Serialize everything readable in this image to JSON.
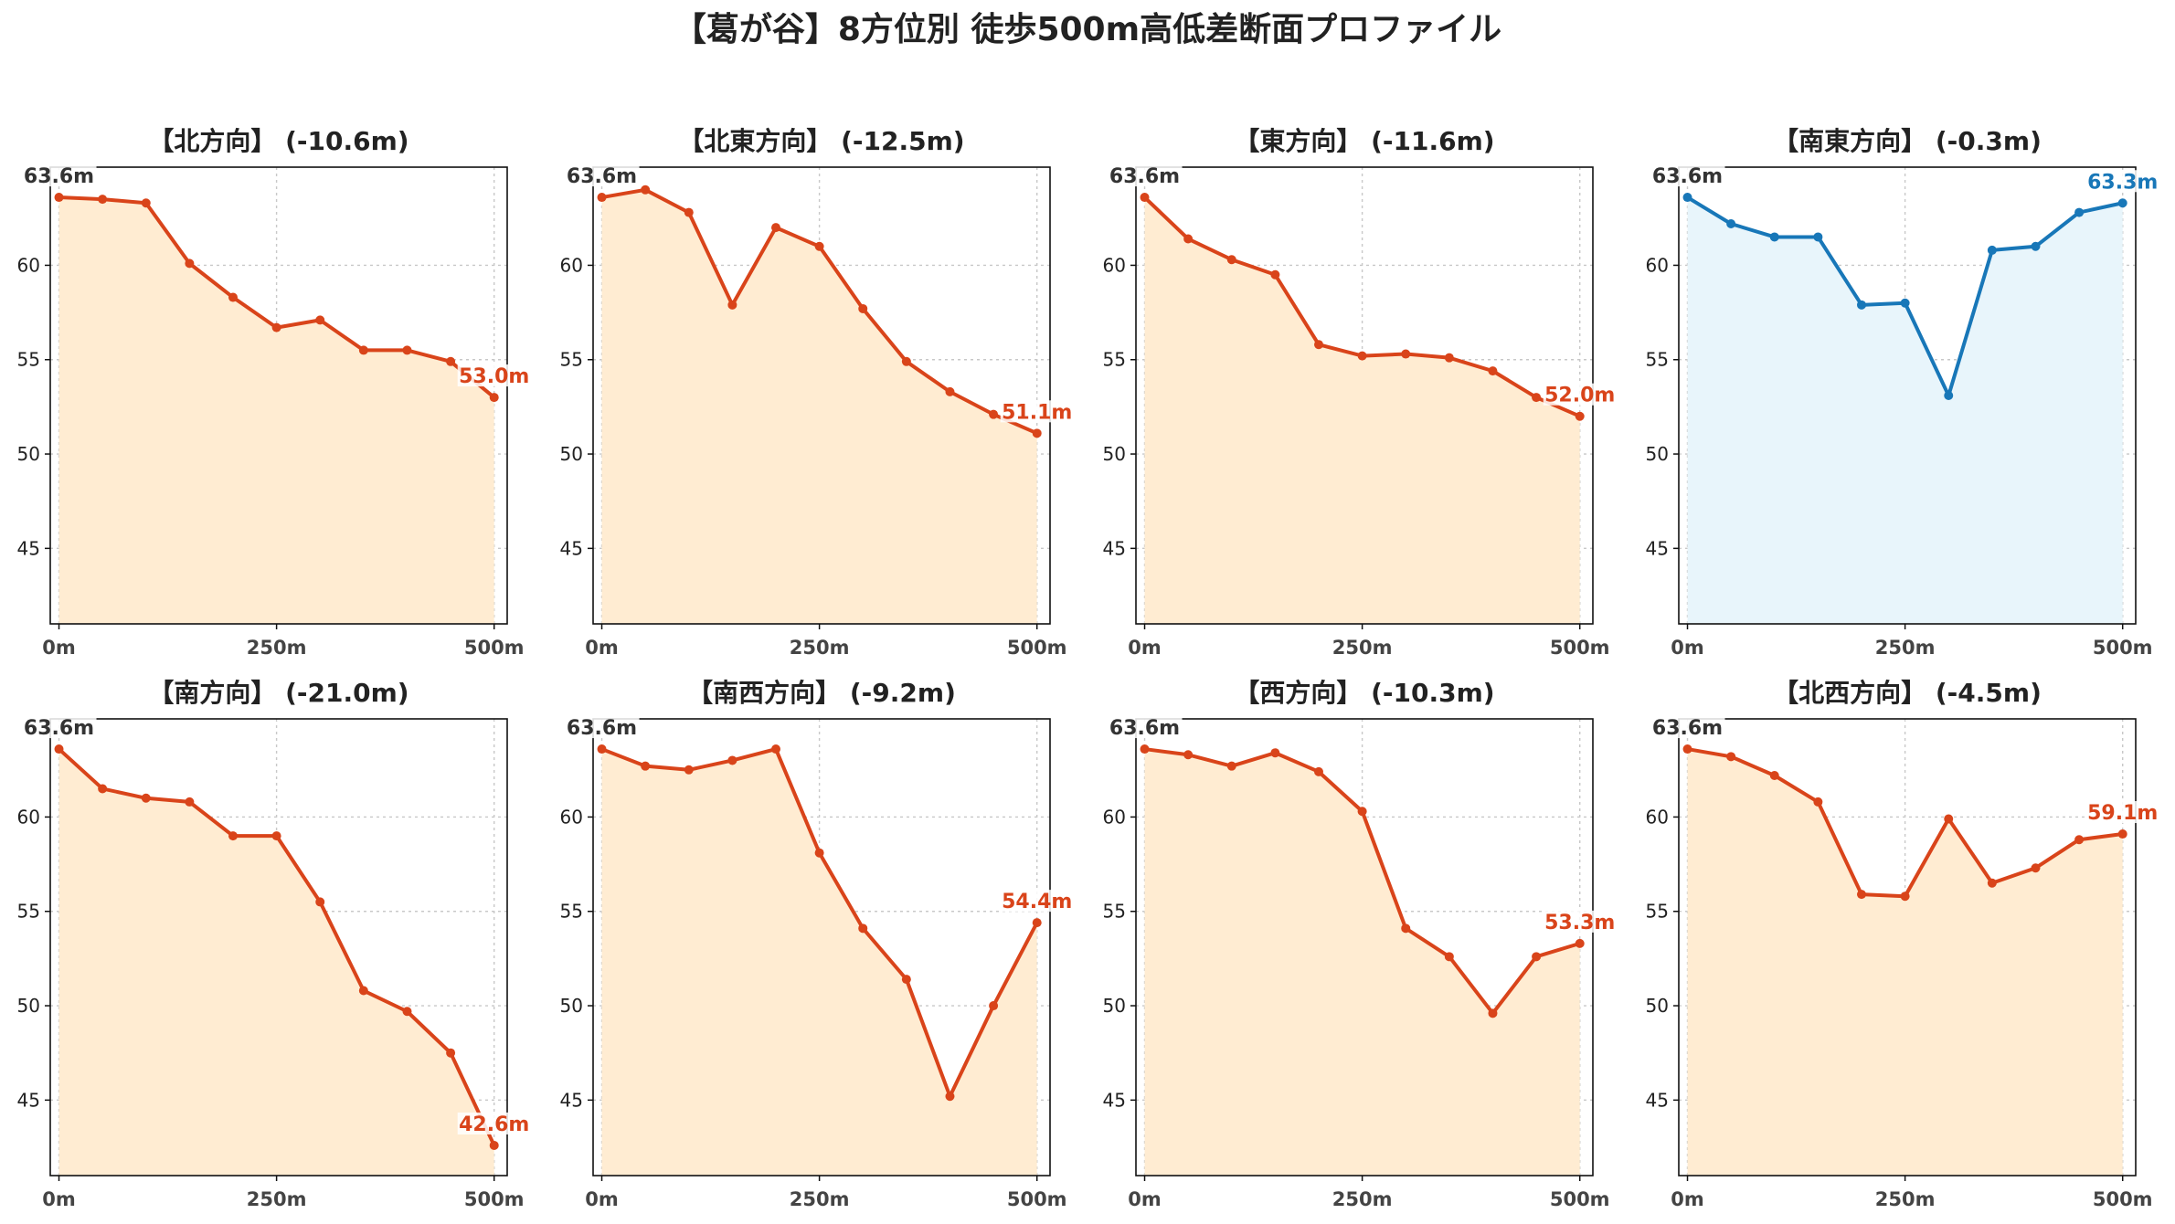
{
  "title": "【葛が谷】8方位別 徒歩500m高低差断面プロファイル",
  "chart_data": [
    {
      "type": "area",
      "title": "【北方向】 (-10.6m)",
      "color": "#d9441a",
      "fill": "#ffecd2",
      "x": [
        0,
        50,
        100,
        150,
        200,
        250,
        300,
        350,
        400,
        450,
        500
      ],
      "values": [
        63.6,
        63.5,
        63.3,
        60.1,
        58.3,
        56.7,
        57.1,
        55.5,
        55.5,
        54.9,
        53.0
      ],
      "start_label": "63.6m",
      "end_label": "53.0m",
      "xticks": [
        "0m",
        "250m",
        "500m"
      ],
      "yticks": [
        "45",
        "50",
        "55",
        "60"
      ],
      "ylim": [
        41,
        65.2
      ],
      "xlim": [
        -10,
        515
      ],
      "grid": true
    },
    {
      "type": "area",
      "title": "【北東方向】 (-12.5m)",
      "color": "#d9441a",
      "fill": "#ffecd2",
      "x": [
        0,
        50,
        100,
        150,
        200,
        250,
        300,
        350,
        400,
        450,
        500
      ],
      "values": [
        63.6,
        64.0,
        62.8,
        57.9,
        62.0,
        61.0,
        57.7,
        54.9,
        53.3,
        52.1,
        51.1
      ],
      "start_label": "63.6m",
      "end_label": "51.1m",
      "xticks": [
        "0m",
        "250m",
        "500m"
      ],
      "yticks": [
        "45",
        "50",
        "55",
        "60"
      ],
      "ylim": [
        41,
        65.2
      ],
      "xlim": [
        -10,
        515
      ],
      "grid": true
    },
    {
      "type": "area",
      "title": "【東方向】 (-11.6m)",
      "color": "#d9441a",
      "fill": "#ffecd2",
      "x": [
        0,
        50,
        100,
        150,
        200,
        250,
        300,
        350,
        400,
        450,
        500
      ],
      "values": [
        63.6,
        61.4,
        60.3,
        59.5,
        55.8,
        55.2,
        55.3,
        55.1,
        54.4,
        53.0,
        52.0
      ],
      "start_label": "63.6m",
      "end_label": "52.0m",
      "xticks": [
        "0m",
        "250m",
        "500m"
      ],
      "yticks": [
        "45",
        "50",
        "55",
        "60"
      ],
      "ylim": [
        41,
        65.2
      ],
      "xlim": [
        -10,
        515
      ],
      "grid": true
    },
    {
      "type": "area",
      "title": "【南東方向】 (-0.3m)",
      "color": "#1877b8",
      "fill": "#e8f5fb",
      "x": [
        0,
        50,
        100,
        150,
        200,
        250,
        300,
        350,
        400,
        450,
        500
      ],
      "values": [
        63.6,
        62.2,
        61.5,
        61.5,
        57.9,
        58.0,
        53.1,
        60.8,
        61.0,
        62.8,
        63.3
      ],
      "start_label": "63.6m",
      "end_label": "63.3m",
      "xticks": [
        "0m",
        "250m",
        "500m"
      ],
      "yticks": [
        "45",
        "50",
        "55",
        "60"
      ],
      "ylim": [
        41,
        65.2
      ],
      "xlim": [
        -10,
        515
      ],
      "grid": true
    },
    {
      "type": "area",
      "title": "【南方向】 (-21.0m)",
      "color": "#d9441a",
      "fill": "#ffecd2",
      "x": [
        0,
        50,
        100,
        150,
        200,
        250,
        300,
        350,
        400,
        450,
        500
      ],
      "values": [
        63.6,
        61.5,
        61.0,
        60.8,
        59.0,
        59.0,
        55.5,
        50.8,
        49.7,
        47.5,
        42.6
      ],
      "start_label": "63.6m",
      "end_label": "42.6m",
      "xticks": [
        "0m",
        "250m",
        "500m"
      ],
      "yticks": [
        "45",
        "50",
        "55",
        "60"
      ],
      "ylim": [
        41,
        65.2
      ],
      "xlim": [
        -10,
        515
      ],
      "grid": true
    },
    {
      "type": "area",
      "title": "【南西方向】 (-9.2m)",
      "color": "#d9441a",
      "fill": "#ffecd2",
      "x": [
        0,
        50,
        100,
        150,
        200,
        250,
        300,
        350,
        400,
        450,
        500
      ],
      "values": [
        63.6,
        62.7,
        62.5,
        63.0,
        63.6,
        58.1,
        54.1,
        51.4,
        45.2,
        50.0,
        54.4
      ],
      "start_label": "63.6m",
      "end_label": "54.4m",
      "xticks": [
        "0m",
        "250m",
        "500m"
      ],
      "yticks": [
        "45",
        "50",
        "55",
        "60"
      ],
      "ylim": [
        41,
        65.2
      ],
      "xlim": [
        -10,
        515
      ],
      "grid": true
    },
    {
      "type": "area",
      "title": "【西方向】 (-10.3m)",
      "color": "#d9441a",
      "fill": "#ffecd2",
      "x": [
        0,
        50,
        100,
        150,
        200,
        250,
        300,
        350,
        400,
        450,
        500
      ],
      "values": [
        63.6,
        63.3,
        62.7,
        63.4,
        62.4,
        60.3,
        54.1,
        52.6,
        49.6,
        52.6,
        53.3
      ],
      "start_label": "63.6m",
      "end_label": "53.3m",
      "xticks": [
        "0m",
        "250m",
        "500m"
      ],
      "yticks": [
        "45",
        "50",
        "55",
        "60"
      ],
      "ylim": [
        41,
        65.2
      ],
      "xlim": [
        -10,
        515
      ],
      "grid": true
    },
    {
      "type": "area",
      "title": "【北西方向】 (-4.5m)",
      "color": "#d9441a",
      "fill": "#ffecd2",
      "x": [
        0,
        50,
        100,
        150,
        200,
        250,
        300,
        350,
        400,
        450,
        500
      ],
      "values": [
        63.6,
        63.2,
        62.2,
        60.8,
        55.9,
        55.8,
        59.9,
        56.5,
        57.3,
        58.8,
        59.1
      ],
      "start_label": "63.6m",
      "end_label": "59.1m",
      "xticks": [
        "0m",
        "250m",
        "500m"
      ],
      "yticks": [
        "45",
        "50",
        "55",
        "60"
      ],
      "ylim": [
        41,
        65.2
      ],
      "xlim": [
        -10,
        515
      ],
      "grid": true
    }
  ]
}
